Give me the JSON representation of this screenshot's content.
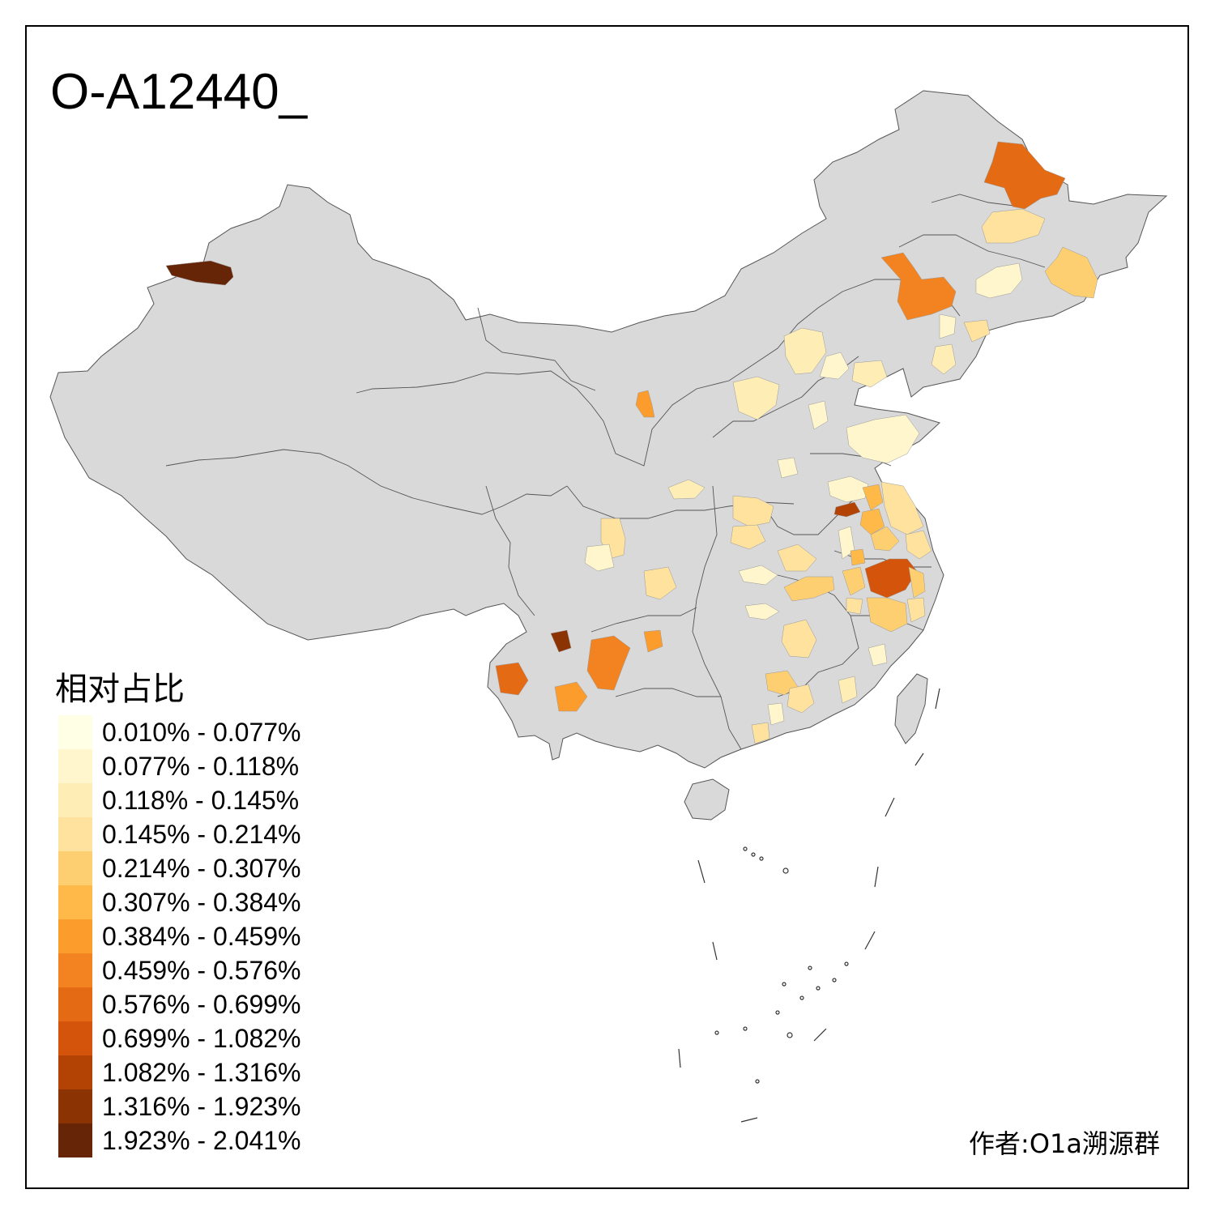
{
  "title": "O-A12440_",
  "legend": {
    "title": "相对占比",
    "items": [
      {
        "label": "0.010% - 0.077%",
        "color": "#FFFFE5"
      },
      {
        "label": "0.077% - 0.118%",
        "color": "#FFF6CD"
      },
      {
        "label": "0.118% - 0.145%",
        "color": "#FFEDB6"
      },
      {
        "label": "0.145% - 0.214%",
        "color": "#FEE29E"
      },
      {
        "label": "0.214% - 0.307%",
        "color": "#FECF70"
      },
      {
        "label": "0.307% - 0.384%",
        "color": "#FEB949"
      },
      {
        "label": "0.384% - 0.459%",
        "color": "#FB9C2D"
      },
      {
        "label": "0.459% - 0.576%",
        "color": "#F38320"
      },
      {
        "label": "0.576% - 0.699%",
        "color": "#E56A14"
      },
      {
        "label": "0.699% - 1.082%",
        "color": "#D3540A"
      },
      {
        "label": "1.082% - 1.316%",
        "color": "#B24304"
      },
      {
        "label": "1.316% - 1.923%",
        "color": "#8C3304"
      },
      {
        "label": "1.923% - 2.041%",
        "color": "#662506"
      }
    ]
  },
  "credit": "作者:O1a溯源群",
  "colors": {
    "base_region": "#D9D9D9",
    "border": "#555555"
  }
}
